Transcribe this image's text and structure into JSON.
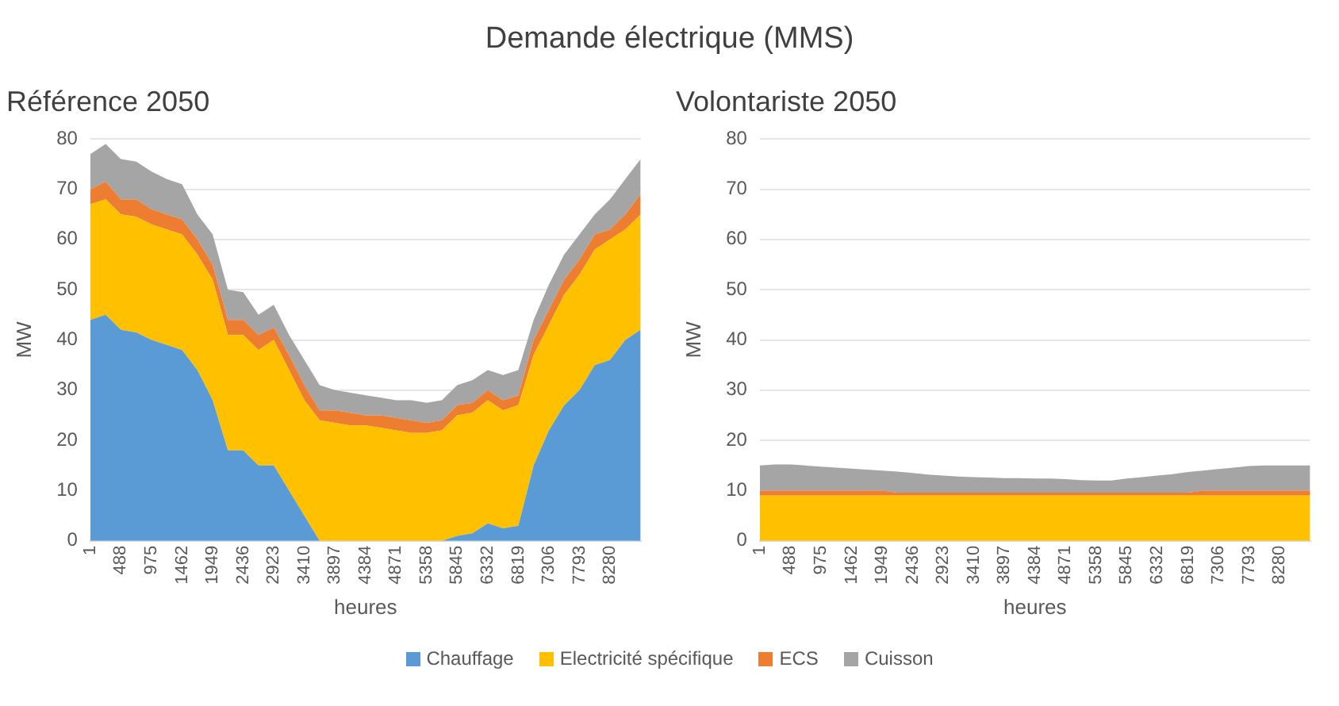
{
  "chart_data": [
    {
      "type": "area",
      "title": "Référence 2050",
      "annotations": [
        "Demande électrique (MMS)"
      ],
      "xlabel": "heures",
      "ylabel": "MW",
      "stacked": true,
      "grid": "y",
      "legend": "bottom",
      "categories": [
        "1",
        null,
        "488",
        null,
        "975",
        null,
        "1462",
        null,
        "1949",
        null,
        "2436",
        null,
        "2923",
        null,
        "3410",
        null,
        "3897",
        null,
        "4384",
        null,
        "4871",
        null,
        "5358",
        null,
        "5845",
        null,
        "6332",
        null,
        "6819",
        null,
        "7306",
        null,
        "7793",
        null,
        "8280",
        null,
        null
      ],
      "ylim": [
        0,
        80
      ],
      "yticks": [
        0,
        10,
        20,
        30,
        40,
        50,
        60,
        70,
        80
      ],
      "series": [
        {
          "name": "Chauffage",
          "color": "#5b9bd5",
          "values": [
            44,
            45,
            42,
            41.5,
            40,
            39,
            38,
            34,
            28,
            18,
            18,
            15,
            15,
            10,
            5,
            0,
            0,
            0,
            0,
            0,
            0,
            0,
            0,
            0,
            1,
            1.5,
            3.5,
            2.5,
            3,
            15,
            22,
            27,
            30,
            35,
            36,
            40,
            42
          ]
        },
        {
          "name": "Electricité spécifique",
          "color": "#ffc000",
          "values": [
            23,
            23,
            23,
            23,
            23,
            23,
            23,
            23,
            24,
            23,
            23,
            23,
            25,
            24,
            23,
            24,
            23.5,
            23,
            23,
            22.5,
            22,
            21.5,
            21.5,
            22,
            24,
            24,
            24.5,
            23.5,
            24,
            22,
            21,
            22,
            23,
            23,
            24,
            22,
            23
          ]
        },
        {
          "name": "ECS",
          "color": "#ed7d31",
          "values": [
            3,
            3.5,
            3,
            3.5,
            3,
            3,
            3,
            3,
            3,
            3,
            3,
            3,
            2.5,
            3,
            3,
            2,
            2.5,
            2.5,
            2,
            2.5,
            2.5,
            2.5,
            2,
            2,
            2,
            2,
            2,
            2,
            2,
            3,
            3,
            3,
            3,
            3,
            2,
            3,
            4
          ]
        },
        {
          "name": "Cuisson",
          "color": "#a5a5a5",
          "values": [
            7,
            7.5,
            8,
            7.5,
            7.5,
            7,
            7,
            5,
            6,
            6,
            5.5,
            4,
            4.5,
            4,
            5,
            5,
            4,
            4,
            4,
            3.5,
            3.5,
            4,
            4,
            4,
            4,
            4.5,
            4,
            5,
            5,
            4,
            5,
            5,
            5,
            4,
            6,
            7,
            7
          ]
        }
      ]
    },
    {
      "type": "area",
      "title": "Volontariste 2050",
      "xlabel": "heures",
      "ylabel": "MW",
      "stacked": true,
      "grid": "y",
      "categories": [
        "1",
        null,
        "488",
        null,
        "975",
        null,
        "1462",
        null,
        "1949",
        null,
        "2436",
        null,
        "2923",
        null,
        "3410",
        null,
        "3897",
        null,
        "4384",
        null,
        "4871",
        null,
        "5358",
        null,
        "5845",
        null,
        "6332",
        null,
        "6819",
        null,
        "7306",
        null,
        "7793",
        null,
        "8280",
        null,
        null
      ],
      "ylim": [
        0,
        80
      ],
      "yticks": [
        0,
        10,
        20,
        30,
        40,
        50,
        60,
        70,
        80
      ],
      "series": [
        {
          "color": "#ffc000",
          "values": [
            9,
            9,
            9,
            9,
            9,
            9,
            9,
            9,
            9,
            9,
            9,
            9,
            9,
            9,
            9,
            9,
            9,
            9,
            9,
            9,
            9,
            9,
            9,
            9,
            9,
            9,
            9,
            9,
            9,
            9,
            9,
            9,
            9,
            9,
            9,
            9,
            9
          ]
        },
        {
          "color": "#ed7d31",
          "values": [
            1,
            1,
            1,
            1,
            1,
            1,
            1,
            1,
            1,
            0.6,
            0.6,
            0.6,
            0.6,
            0.6,
            0.6,
            0.6,
            0.6,
            0.6,
            0.6,
            0.6,
            0.6,
            0.6,
            0.6,
            0.6,
            0.6,
            0.6,
            0.6,
            0.6,
            0.6,
            1,
            1,
            1,
            1,
            1,
            1,
            1,
            1
          ]
        },
        {
          "color": "#a5a5a5",
          "values": [
            5,
            5.2,
            5.2,
            5,
            4.8,
            4.6,
            4.4,
            4.2,
            4,
            4.2,
            3.9,
            3.6,
            3.4,
            3.2,
            3.1,
            3,
            2.9,
            2.9,
            2.8,
            2.8,
            2.7,
            2.5,
            2.4,
            2.4,
            2.8,
            3.1,
            3.4,
            3.7,
            4.1,
            4,
            4.3,
            4.6,
            4.9,
            5,
            5,
            5,
            5
          ]
        }
      ]
    }
  ]
}
